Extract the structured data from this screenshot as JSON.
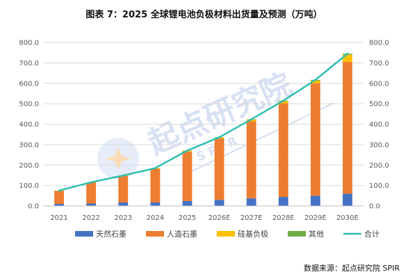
{
  "title": "图表 7：2025 全球锂电池负极材料出货量及预测（万吨）",
  "source": "数据来源：起点研究院 SPIR",
  "watermark": {
    "main": "起点研究院",
    "sub": "S P I R"
  },
  "colors": {
    "natural": "#4472c4",
    "artificial": "#ed7d31",
    "silicon": "#ffc000",
    "other": "#70ad47",
    "total": "#2ebfb0",
    "grid": "#d9d9d9",
    "axis": "#bfbfbf"
  },
  "chart_data": {
    "type": "bar",
    "stacked": true,
    "categories": [
      "2021",
      "2022",
      "2023",
      "2024",
      "2025",
      "2026E",
      "2027E",
      "2028E",
      "2029E",
      "2030E"
    ],
    "series": [
      {
        "name": "天然石墨",
        "values": [
          10,
          12,
          17,
          17,
          24,
          30,
          37,
          44,
          50,
          60
        ]
      },
      {
        "name": "人造石墨",
        "values": [
          64,
          102,
          130,
          165,
          242,
          300,
          377,
          458,
          550,
          645
        ]
      },
      {
        "name": "硅基负极",
        "values": [
          1,
          2,
          2,
          3,
          4,
          5,
          8,
          10,
          13,
          35
        ]
      },
      {
        "name": "其他",
        "values": [
          0,
          0,
          0,
          0,
          1,
          1,
          2,
          3,
          4,
          5
        ]
      }
    ],
    "line": {
      "name": "合计",
      "values": [
        75,
        116,
        149,
        185,
        271,
        336,
        424,
        515,
        617,
        745
      ]
    },
    "ylim": [
      0,
      800
    ],
    "yticks": [
      "0.0",
      "100.0",
      "200.0",
      "300.0",
      "400.0",
      "500.0",
      "600.0",
      "700.0",
      "800.0"
    ],
    "secondary_axis": true,
    "grid": true,
    "legend": "bottom"
  }
}
